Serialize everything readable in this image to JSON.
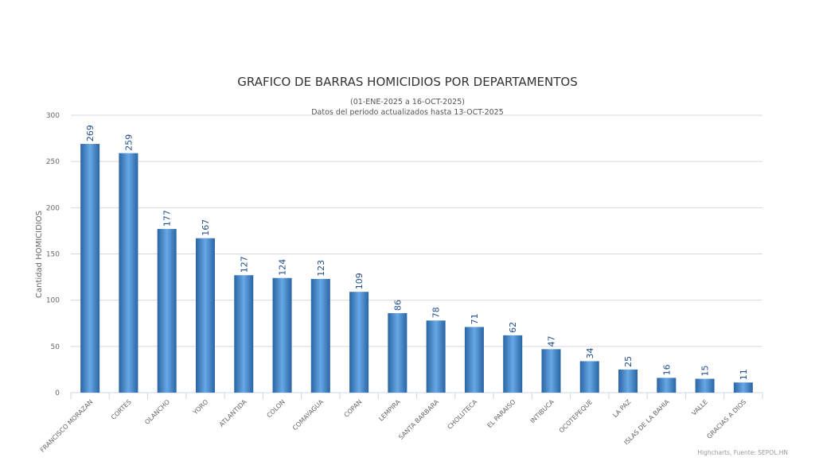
{
  "chart_data": {
    "type": "bar",
    "title": "GRAFICO DE BARRAS HOMICIDIOS POR DEPARTAMENTOS",
    "subtitle": [
      "(01-ENE-2025 a 16-OCT-2025)",
      "Datos del periodo actualizados hasta 13-OCT-2025"
    ],
    "xlabel": "",
    "ylabel": "Cantidad HOMICIDIOS",
    "ylim": [
      0,
      300
    ],
    "yticks": [
      0,
      50,
      100,
      150,
      200,
      250,
      300
    ],
    "grid": true,
    "categories": [
      "FRANCISCO MORAZAN",
      "CORTES",
      "OLANCHO",
      "YORO",
      "ATLANTIDA",
      "COLON",
      "COMAYAGUA",
      "COPAN",
      "LEMPIRA",
      "SANTA BARBARA",
      "CHOLUTECA",
      "EL PARAISO",
      "INTIBUCA",
      "OCOTEPEQUE",
      "LA PAZ",
      "ISLAS DE LA BAHIA",
      "VALLE",
      "GRACIAS A DIOS"
    ],
    "values": [
      269,
      259,
      177,
      167,
      127,
      124,
      123,
      109,
      86,
      78,
      71,
      62,
      47,
      34,
      25,
      16,
      15,
      11
    ],
    "bar_color": "#3a7cc0",
    "label_color": "#1f4e8c",
    "credits": "Highcharts, Fuente: SEPOL.HN"
  }
}
